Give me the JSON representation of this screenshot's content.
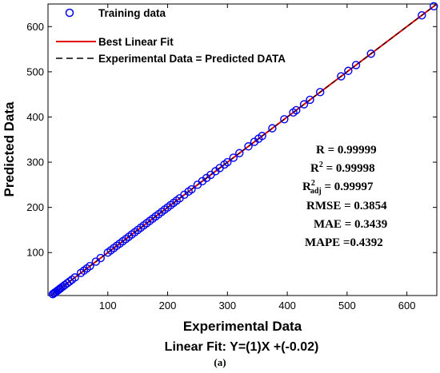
{
  "chart_data": {
    "type": "scatter",
    "xlabel": "Experimental Data",
    "ylabel": "Predicted Data",
    "xlim": [
      0,
      650
    ],
    "ylim": [
      5,
      650
    ],
    "xticks": [
      100,
      200,
      300,
      400,
      500,
      600
    ],
    "yticks": [
      100,
      200,
      300,
      400,
      500,
      600
    ],
    "grid": false,
    "legend_position": "top-left",
    "legend": [
      "Training data",
      "Best Linear Fit",
      "Experimental Data = Predicted DATA"
    ],
    "fit_equation": "Linear Fit: Y=(1)X +(-0.02)",
    "panel_label": "(a)",
    "statistics": {
      "r": "R = 0.99999",
      "r2_base": "R",
      "r2_rest": " = 0.99998",
      "r2adj_base": "R",
      "r2adj_sub": "adj",
      "r2adj_rest": " = 0.99997",
      "rmse": "RMSE = 0.3854",
      "mae": "MAE = 0.3439",
      "mape": "MAPE =0.4392"
    },
    "series": [
      {
        "name": "Training data",
        "marker": "circle",
        "x": [
          8,
          10,
          12,
          14,
          16,
          18,
          20,
          22,
          25,
          28,
          32,
          36,
          40,
          45,
          55,
          60,
          65,
          70,
          80,
          88,
          100,
          105,
          110,
          115,
          120,
          125,
          130,
          135,
          140,
          145,
          150,
          155,
          160,
          165,
          170,
          175,
          180,
          185,
          190,
          195,
          200,
          205,
          210,
          215,
          220,
          228,
          235,
          240,
          250,
          258,
          265,
          272,
          280,
          287,
          295,
          300,
          310,
          320,
          335,
          345,
          352,
          358,
          375,
          395,
          410,
          415,
          428,
          438,
          455,
          490,
          502,
          515,
          540,
          625,
          645
        ],
        "y": [
          8,
          10,
          12,
          14,
          16,
          18,
          20,
          22,
          25,
          28,
          32,
          36,
          40,
          45,
          55,
          60,
          65,
          70,
          80,
          88,
          100,
          105,
          110,
          115,
          120,
          125,
          130,
          135,
          140,
          145,
          150,
          155,
          160,
          165,
          170,
          175,
          180,
          185,
          190,
          195,
          200,
          205,
          210,
          215,
          220,
          228,
          235,
          240,
          250,
          258,
          265,
          272,
          280,
          287,
          295,
          300,
          310,
          320,
          335,
          345,
          352,
          358,
          375,
          395,
          410,
          415,
          428,
          438,
          455,
          490,
          502,
          515,
          540,
          625,
          645
        ]
      },
      {
        "name": "Best Linear Fit",
        "marker": "line",
        "slope": 1,
        "intercept": -0.02
      },
      {
        "name": "Experimental Data = Predicted DATA",
        "marker": "dashed-line",
        "slope": 1,
        "intercept": 0
      }
    ]
  },
  "colors": {
    "markers": "#0000ee",
    "fit_line": "#e00000",
    "identity_line": "#000000",
    "axes": "#000000"
  }
}
